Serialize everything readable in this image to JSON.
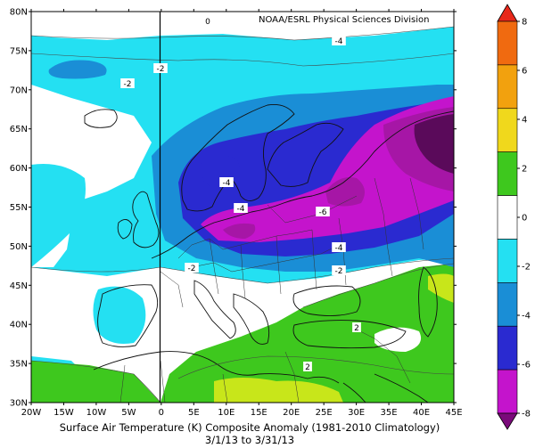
{
  "header": {
    "credit": "NOAA/ESRL Physical Sciences Division"
  },
  "caption": {
    "line1": "Surface Air Temperature (K) Composite Anomaly (1981-2010 Climatology)",
    "line2": "3/1/13  to 3/31/13"
  },
  "axes": {
    "lat_labels": [
      "80N",
      "75N",
      "70N",
      "65N",
      "60N",
      "55N",
      "50N",
      "45N",
      "40N",
      "35N",
      "30N"
    ],
    "lon_labels": [
      "20W",
      "15W",
      "10W",
      "5W",
      "0",
      "5E",
      "10E",
      "15E",
      "20E",
      "25E",
      "30E",
      "35E",
      "40E",
      "45E"
    ]
  },
  "colorbar": {
    "ticks": [
      "8",
      "6",
      "4",
      "2",
      "0",
      "-2",
      "-4",
      "-6",
      "-8"
    ],
    "colors": [
      "#e8281a",
      "#f06a10",
      "#f2a10e",
      "#f0d81c",
      "#3ec81e",
      "#ffffff",
      "#24e0f2",
      "#1a8ed6",
      "#2a2ad0",
      "#c414cc",
      "#7a0a7a"
    ]
  },
  "contour_labels": [
    {
      "text": "0"
    },
    {
      "text": "-4"
    },
    {
      "text": "-2"
    },
    {
      "text": "-2"
    },
    {
      "text": "-4"
    },
    {
      "text": "-4"
    },
    {
      "text": "-6"
    },
    {
      "text": "-4"
    },
    {
      "text": "-2"
    },
    {
      "text": "-2"
    },
    {
      "text": "2"
    },
    {
      "text": "2"
    }
  ],
  "map": {
    "domain": {
      "lon_min": -20,
      "lon_max": 45,
      "lat_min": 30,
      "lat_max": 80
    },
    "anomaly_colors": {
      "minus8": "#5a0a5a",
      "minus7": "#7a0a7a",
      "minus6": "#a616a6",
      "minus5": "#c414cc",
      "minus4": "#2a2ad0",
      "minus3": "#1a8ed6",
      "minus2": "#24e0f2",
      "plus2": "#3ec81e",
      "plus4": "#c8e61a",
      "zero": "#ffffff"
    }
  }
}
